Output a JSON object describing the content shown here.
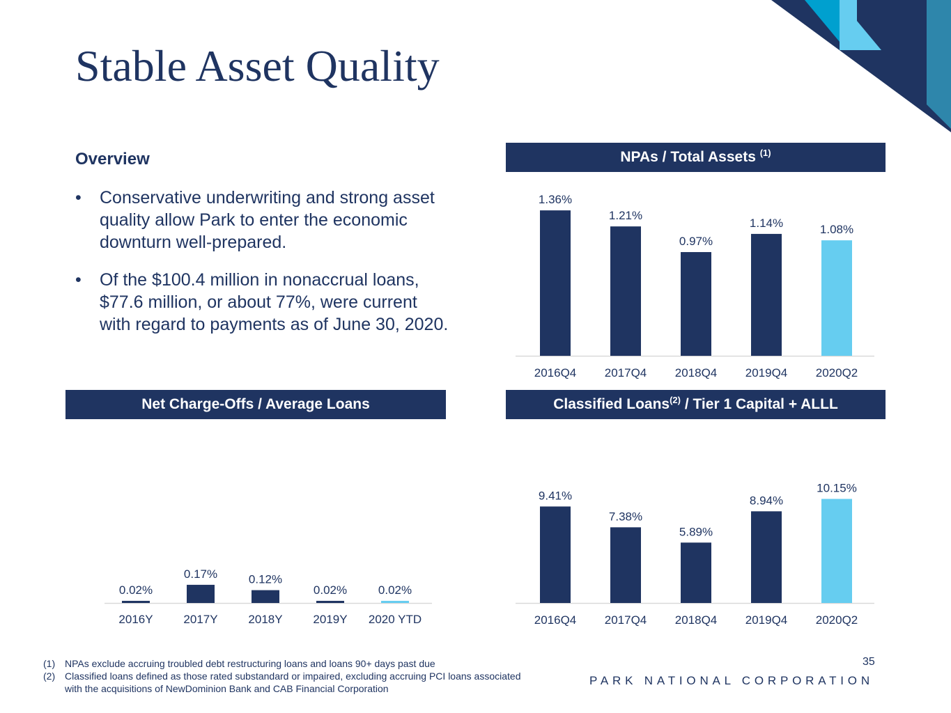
{
  "slide": {
    "title": "Stable Asset Quality",
    "page_number": "35",
    "company": "PARK NATIONAL CORPORATION"
  },
  "overview": {
    "heading": "Overview",
    "bullet_symbol": "•",
    "bullets": [
      "Conservative underwriting and strong asset quality allow Park to enter the economic downturn well-prepared.",
      "Of the $100.4 million in nonaccrual loans, $77.6 million, or about 77%, were current with regard to payments as of June 30, 2020."
    ]
  },
  "panels": {
    "npa": {
      "title": "NPAs / Total Assets",
      "superscript": "(1)"
    },
    "nco": {
      "title": "Net Charge-Offs / Average Loans"
    },
    "classified": {
      "title_part1": "Classified Loans",
      "superscript": "(2)",
      "title_part2": " / Tier 1 Capital + ALLL"
    }
  },
  "colors": {
    "navy": "#1f3461",
    "highlight": "#66cdf0",
    "deco_blue": "#00a0cf",
    "deco_light": "#66cdf0",
    "deco_steel": "#2e86ab",
    "axis": "#d9d9d9"
  },
  "chart_data": [
    {
      "id": "npa",
      "type": "bar",
      "title": "NPAs / Total Assets (1)",
      "categories": [
        "2016Q4",
        "2017Q4",
        "2018Q4",
        "2019Q4",
        "2020Q2"
      ],
      "values": [
        1.36,
        1.21,
        0.97,
        1.14,
        1.08
      ],
      "labels": [
        "1.36%",
        "1.21%",
        "0.97%",
        "1.14%",
        "1.08%"
      ],
      "highlight_index": 4,
      "ylim": [
        0,
        1.4
      ],
      "xlabel": "",
      "ylabel": ""
    },
    {
      "id": "nco",
      "type": "bar",
      "title": "Net Charge-Offs / Average Loans",
      "categories": [
        "2016Y",
        "2017Y",
        "2018Y",
        "2019Y",
        "2020 YTD"
      ],
      "values": [
        0.02,
        0.17,
        0.12,
        0.02,
        0.02
      ],
      "labels": [
        "0.02%",
        "0.17%",
        "0.12%",
        "0.02%",
        "0.02%"
      ],
      "highlight_index": 4,
      "ylim": [
        0,
        1.4
      ],
      "xlabel": "",
      "ylabel": ""
    },
    {
      "id": "classified",
      "type": "bar",
      "title": "Classified Loans(2) / Tier 1 Capital + ALLL",
      "categories": [
        "2016Q4",
        "2017Q4",
        "2018Q4",
        "2019Q4",
        "2020Q2"
      ],
      "values": [
        9.41,
        7.38,
        5.89,
        8.94,
        10.15
      ],
      "labels": [
        "9.41%",
        "7.38%",
        "5.89%",
        "8.94%",
        "10.15%"
      ],
      "highlight_index": 4,
      "ylim": [
        0,
        11
      ],
      "xlabel": "",
      "ylabel": ""
    }
  ],
  "footnotes": [
    {
      "num": "(1)",
      "text": "NPAs exclude accruing troubled debt restructuring loans and loans 90+ days past due"
    },
    {
      "num": "(2)",
      "text": "Classified loans defined as those rated substandard or impaired, excluding accruing PCI loans associated with the acquisitions of NewDominion Bank and CAB Financial Corporation"
    }
  ]
}
